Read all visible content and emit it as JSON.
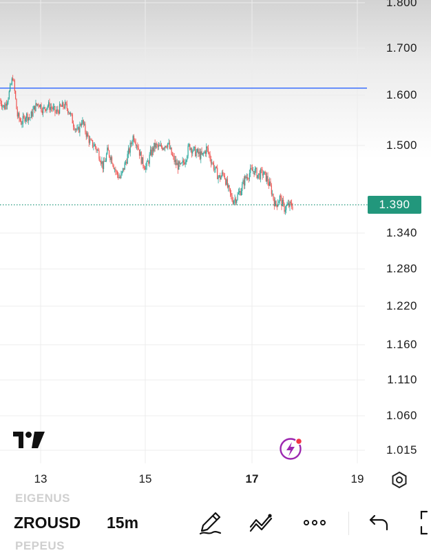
{
  "chart_data": {
    "type": "candlestick",
    "price_axis": [
      "1.800",
      "1.700",
      "1.600",
      "1.500",
      "1.340",
      "1.280",
      "1.220",
      "1.160",
      "1.110",
      "1.060",
      "1.015"
    ],
    "date_axis": [
      {
        "label": "13",
        "bold": false
      },
      {
        "label": "15",
        "bold": false
      },
      {
        "label": "17",
        "bold": true
      },
      {
        "label": "19",
        "bold": false
      }
    ],
    "current_price": "1.390",
    "horizontal_line_price": 1.615,
    "series": [
      1.59,
      1.575,
      1.6,
      1.64,
      1.56,
      1.545,
      1.56,
      1.555,
      1.575,
      1.585,
      1.57,
      1.58,
      1.575,
      1.565,
      1.575,
      1.58,
      1.57,
      1.545,
      1.525,
      1.55,
      1.525,
      1.505,
      1.5,
      1.485,
      1.46,
      1.49,
      1.475,
      1.45,
      1.44,
      1.465,
      1.49,
      1.52,
      1.5,
      1.47,
      1.46,
      1.485,
      1.5,
      1.495,
      1.5,
      1.505,
      1.48,
      1.465,
      1.46,
      1.475,
      1.5,
      1.49,
      1.485,
      1.48,
      1.495,
      1.475,
      1.455,
      1.44,
      1.45,
      1.42,
      1.4,
      1.405,
      1.42,
      1.44,
      1.45,
      1.455,
      1.445,
      1.45,
      1.44,
      1.42,
      1.39,
      1.405,
      1.385,
      1.39,
      1.39
    ],
    "colors": {
      "up": "#26a69a",
      "down": "#ef5350",
      "line": "#2962ff",
      "current": "#22977c"
    }
  },
  "toolbar": {
    "prev_symbol": "EIGENUS",
    "symbol": "ZROUSD",
    "next_symbol": "PEPEUS",
    "interval": "15m",
    "icons": [
      "pen-icon",
      "trend-lines-icon",
      "more-dots-icon",
      "undo-icon",
      "fullscreen-icon"
    ]
  }
}
